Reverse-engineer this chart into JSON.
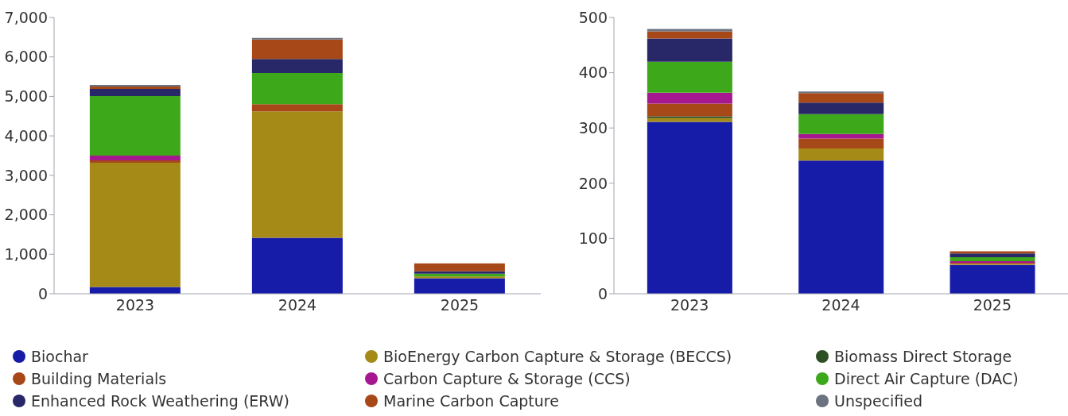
{
  "chart_data": [
    {
      "type": "bar",
      "stacked": true,
      "categories": [
        "2023",
        "2024",
        "2025"
      ],
      "ylim": [
        0,
        7000
      ],
      "yticks": [
        0,
        {
          "value": 1000,
          "label": "1,000"
        },
        {
          "value": 2000,
          "label": "2,000"
        },
        {
          "value": 3000,
          "label": "3,000"
        },
        {
          "value": 4000,
          "label": "4,000"
        },
        {
          "value": 5000,
          "label": "5,000"
        },
        {
          "value": 6000,
          "label": "6,000"
        },
        {
          "value": 7000,
          "label": "7,000"
        }
      ],
      "grid": false,
      "legend": "bottom",
      "series": [
        {
          "name": "Biochar",
          "color": "#161ba8",
          "values": [
            170,
            1420,
            390
          ]
        },
        {
          "name": "BioEnergy Carbon Capture & Storage (BECCS)",
          "color": "#a68a18",
          "values": [
            3150,
            3200,
            50
          ]
        },
        {
          "name": "Biomass Direct Storage",
          "color": "#2e4f22",
          "values": [
            0,
            0,
            0
          ]
        },
        {
          "name": "Building Materials",
          "color": "#a74818",
          "values": [
            60,
            180,
            0
          ]
        },
        {
          "name": "Carbon Capture & Storage (CCS)",
          "color": "#a61890",
          "values": [
            120,
            0,
            0
          ]
        },
        {
          "name": "Direct Air Capture (DAC)",
          "color": "#3ca81a",
          "values": [
            1510,
            790,
            70
          ]
        },
        {
          "name": "Enhanced Rock Weathering (ERW)",
          "color": "#282868",
          "values": [
            180,
            360,
            60
          ]
        },
        {
          "name": "Marine Carbon Capture",
          "color": "#a74818",
          "values": [
            60,
            490,
            200
          ]
        },
        {
          "name": "Unspecified",
          "color": "#6b7280",
          "values": [
            40,
            40,
            0
          ]
        }
      ]
    },
    {
      "type": "bar",
      "stacked": true,
      "categories": [
        "2023",
        "2024",
        "2025"
      ],
      "ylim": [
        0,
        500
      ],
      "yticks": [
        0,
        100,
        200,
        300,
        400,
        500
      ],
      "grid": false,
      "series": [
        {
          "color": "#161ba8",
          "values": [
            311,
            241,
            52
          ]
        },
        {
          "color": "#a68a18",
          "values": [
            7,
            22,
            2
          ]
        },
        {
          "color": "#2e4f22",
          "values": [
            3,
            0,
            0
          ]
        },
        {
          "color": "#a74818",
          "values": [
            23,
            18,
            2
          ]
        },
        {
          "color": "#a61890",
          "values": [
            20,
            8,
            3
          ]
        },
        {
          "color": "#3ca81a",
          "values": [
            56,
            36,
            7
          ]
        },
        {
          "color": "#282868",
          "values": [
            42,
            21,
            7
          ]
        },
        {
          "color": "#a74818",
          "values": [
            13,
            17,
            4
          ]
        },
        {
          "color": "#6b7280",
          "values": [
            4,
            3,
            0
          ]
        }
      ]
    }
  ]
}
